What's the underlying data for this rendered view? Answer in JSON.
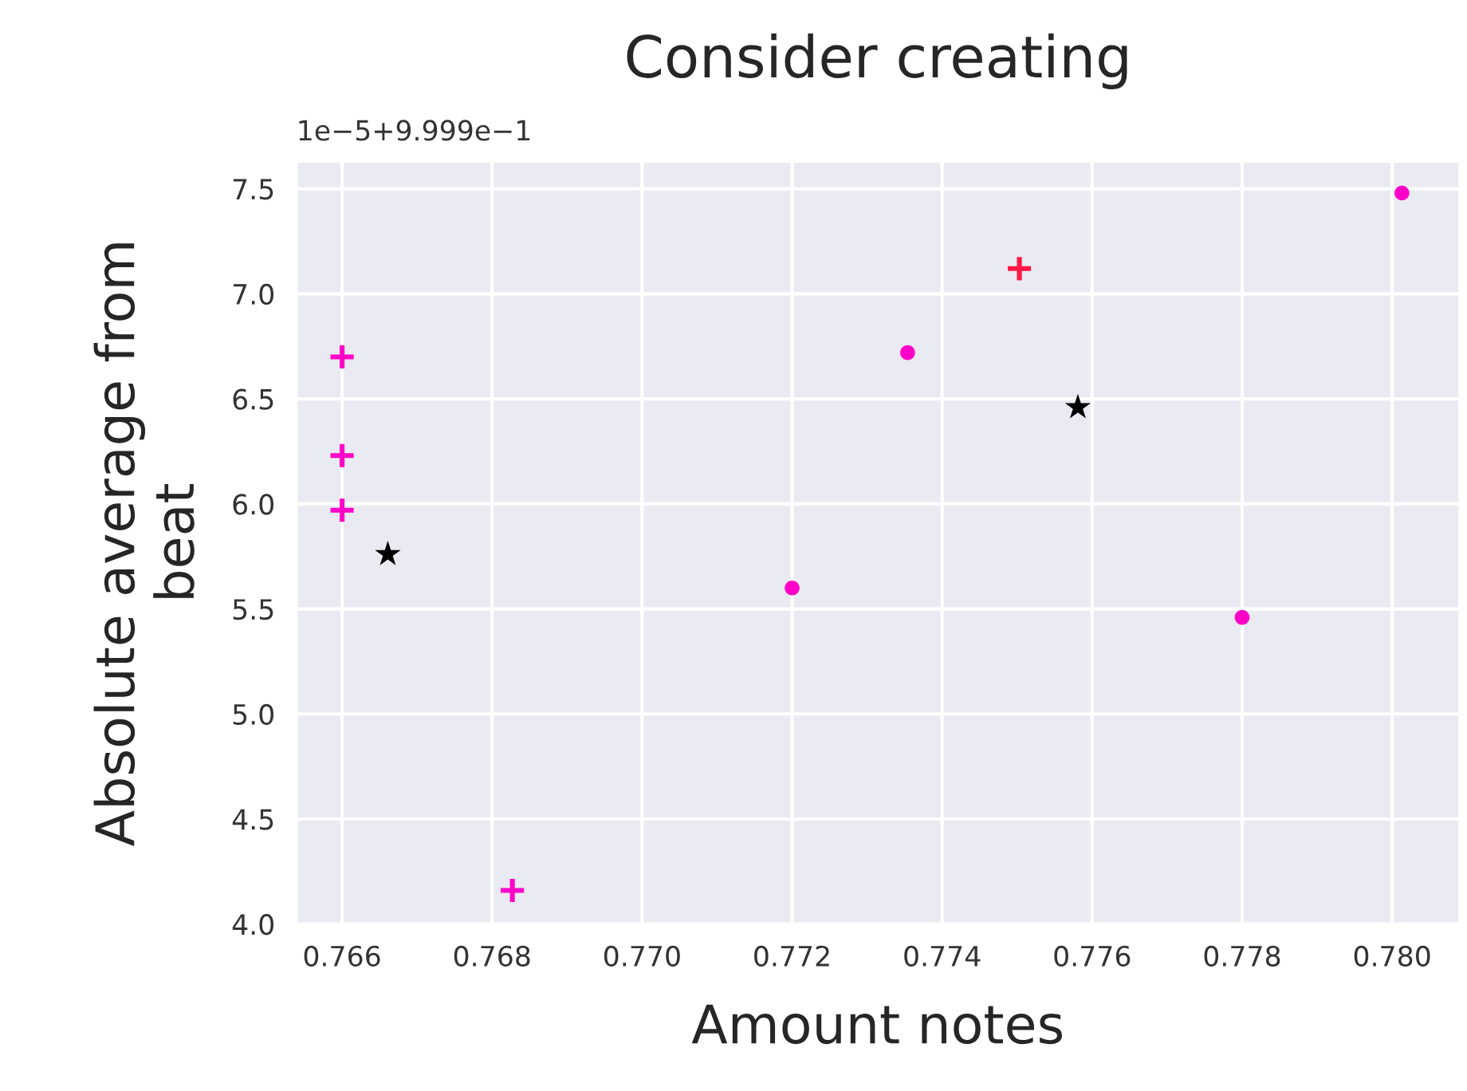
{
  "chart_data": {
    "type": "scatter",
    "title": "Consider creating",
    "xlabel": "Amount notes",
    "ylabel": "Absolute average from\nbeat",
    "annotations": [
      "1e−5+9.999e−1"
    ],
    "series": [
      {
        "color": "#ff00c8",
        "marker": "cross",
        "x": [
          0.766,
          0.766,
          0.766,
          0.76827
        ],
        "values": [
          6.7,
          6.23,
          5.97,
          4.16
        ]
      },
      {
        "color": "#ff1744",
        "marker": "cross",
        "x": [
          0.77503
        ],
        "values": [
          7.12
        ]
      },
      {
        "color": "#ff00c8",
        "marker": "circle",
        "x": [
          0.772,
          0.77354,
          0.778,
          0.78013
        ],
        "values": [
          5.6,
          6.72,
          5.46,
          7.48
        ]
      },
      {
        "color": "#000000",
        "marker": "star",
        "x": [
          0.76661,
          0.77581
        ],
        "values": [
          5.76,
          6.46
        ]
      }
    ],
    "xlim": [
      0.76539,
      0.7809
    ],
    "ylim": [
      4.0,
      7.63
    ],
    "xticks": [
      0.766,
      0.768,
      {
        "value": 0.77,
        "label": "0.770"
      },
      0.772,
      0.774,
      0.776,
      0.778,
      {
        "value": 0.78,
        "label": "0.780"
      }
    ],
    "yticks": [
      {
        "value": 4,
        "label": "4.0"
      },
      4.5,
      {
        "value": 5,
        "label": "5.0"
      },
      5.5,
      {
        "value": 6,
        "label": "6.0"
      },
      6.5,
      {
        "value": 7,
        "label": "7.0"
      },
      7.5
    ],
    "grid": true
  }
}
